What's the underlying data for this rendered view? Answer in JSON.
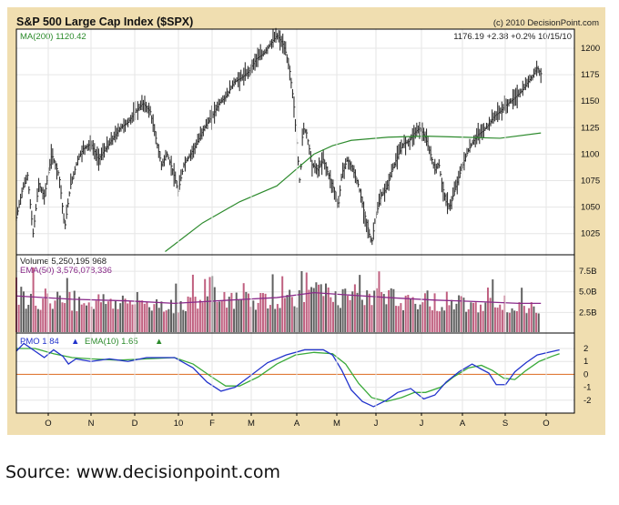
{
  "chart_data": {
    "type": "line",
    "title": "S&P 500 Large Cap Index ($SPX)",
    "copyright": "(c) 2010 DecisionPoint.com",
    "quote": "1176.19  +2.38  +0.2%  10/15/10",
    "ma_label": "MA(200) 1120.42",
    "x_ticks": [
      "O",
      "N",
      "D",
      "10",
      "F",
      "M",
      "A",
      "M",
      "J",
      "J",
      "A",
      "S",
      "O"
    ],
    "panels": {
      "price": {
        "ylim": [
          1005,
          1218
        ],
        "y_ticks": [
          1025,
          1050,
          1075,
          1100,
          1125,
          1150,
          1175,
          1200
        ],
        "close": [
          [
            0,
            1040
          ],
          [
            6,
            1065
          ],
          [
            12,
            1080
          ],
          [
            18,
            1025
          ],
          [
            24,
            1072
          ],
          [
            30,
            1060
          ],
          [
            38,
            1100
          ],
          [
            46,
            1080
          ],
          [
            52,
            1030
          ],
          [
            58,
            1070
          ],
          [
            66,
            1095
          ],
          [
            72,
            1105
          ],
          [
            80,
            1110
          ],
          [
            88,
            1095
          ],
          [
            96,
            1105
          ],
          [
            104,
            1115
          ],
          [
            112,
            1125
          ],
          [
            120,
            1130
          ],
          [
            128,
            1140
          ],
          [
            136,
            1148
          ],
          [
            144,
            1140
          ],
          [
            150,
            1115
          ],
          [
            156,
            1090
          ],
          [
            162,
            1100
          ],
          [
            168,
            1085
          ],
          [
            174,
            1065
          ],
          [
            180,
            1090
          ],
          [
            186,
            1098
          ],
          [
            194,
            1110
          ],
          [
            202,
            1125
          ],
          [
            210,
            1135
          ],
          [
            218,
            1148
          ],
          [
            226,
            1155
          ],
          [
            234,
            1168
          ],
          [
            242,
            1172
          ],
          [
            250,
            1178
          ],
          [
            258,
            1190
          ],
          [
            266,
            1195
          ],
          [
            274,
            1205
          ],
          [
            280,
            1212
          ],
          [
            286,
            1205
          ],
          [
            290,
            1195
          ],
          [
            294,
            1178
          ],
          [
            298,
            1150
          ],
          [
            302,
            1105
          ],
          [
            305,
            1070
          ],
          [
            308,
            1125
          ],
          [
            312,
            1120
          ],
          [
            318,
            1090
          ],
          [
            324,
            1085
          ],
          [
            330,
            1095
          ],
          [
            336,
            1080
          ],
          [
            342,
            1065
          ],
          [
            346,
            1050
          ],
          [
            350,
            1082
          ],
          [
            356,
            1095
          ],
          [
            362,
            1085
          ],
          [
            368,
            1070
          ],
          [
            374,
            1045
          ],
          [
            378,
            1030
          ],
          [
            382,
            1015
          ],
          [
            386,
            1040
          ],
          [
            392,
            1060
          ],
          [
            398,
            1068
          ],
          [
            404,
            1085
          ],
          [
            410,
            1098
          ],
          [
            416,
            1110
          ],
          [
            422,
            1112
          ],
          [
            428,
            1120
          ],
          [
            434,
            1125
          ],
          [
            440,
            1115
          ],
          [
            446,
            1098
          ],
          [
            450,
            1085
          ],
          [
            454,
            1092
          ],
          [
            458,
            1070
          ],
          [
            462,
            1055
          ],
          [
            466,
            1050
          ],
          [
            472,
            1068
          ],
          [
            478,
            1085
          ],
          [
            484,
            1100
          ],
          [
            490,
            1110
          ],
          [
            496,
            1118
          ],
          [
            502,
            1122
          ],
          [
            508,
            1128
          ],
          [
            514,
            1136
          ],
          [
            520,
            1140
          ],
          [
            526,
            1146
          ],
          [
            532,
            1150
          ],
          [
            538,
            1155
          ],
          [
            544,
            1160
          ],
          [
            550,
            1168
          ],
          [
            556,
            1175
          ],
          [
            560,
            1182
          ],
          [
            564,
            1176
          ]
        ],
        "ma200": [
          [
            160,
            1008
          ],
          [
            200,
            1035
          ],
          [
            240,
            1055
          ],
          [
            280,
            1070
          ],
          [
            300,
            1085
          ],
          [
            320,
            1100
          ],
          [
            340,
            1108
          ],
          [
            360,
            1113
          ],
          [
            400,
            1116
          ],
          [
            440,
            1117
          ],
          [
            480,
            1116
          ],
          [
            520,
            1115
          ],
          [
            564,
            1120
          ]
        ]
      },
      "volume": {
        "volume_label": "Volume 5,250,195,968",
        "ema_label": "EMA(50) 3,576,078,336",
        "ylim": [
          0,
          9.5
        ],
        "y_ticks": [
          "2.5B",
          "5.0B",
          "7.5B"
        ],
        "ema": [
          [
            0,
            4.5
          ],
          [
            60,
            4.1
          ],
          [
            120,
            3.9
          ],
          [
            170,
            3.6
          ],
          [
            230,
            4.0
          ],
          [
            280,
            4.3
          ],
          [
            320,
            4.9
          ],
          [
            360,
            4.6
          ],
          [
            400,
            4.3
          ],
          [
            450,
            4.0
          ],
          [
            500,
            3.8
          ],
          [
            540,
            3.6
          ],
          [
            564,
            3.6
          ]
        ]
      },
      "pmo": {
        "pmo_label": "PMO  1.84",
        "ema_label": "EMA(10)  1.65",
        "ylim": [
          -3,
          3.2
        ],
        "y_ticks": [
          2,
          1,
          0,
          -1,
          -2
        ],
        "pmo": [
          [
            0,
            1.8
          ],
          [
            8,
            2.4
          ],
          [
            20,
            1.8
          ],
          [
            30,
            1.3
          ],
          [
            40,
            1.9
          ],
          [
            50,
            1.4
          ],
          [
            56,
            0.8
          ],
          [
            64,
            1.2
          ],
          [
            80,
            1.0
          ],
          [
            100,
            1.2
          ],
          [
            120,
            1.0
          ],
          [
            140,
            1.3
          ],
          [
            170,
            1.3
          ],
          [
            190,
            0.5
          ],
          [
            205,
            -0.6
          ],
          [
            220,
            -1.3
          ],
          [
            235,
            -1.0
          ],
          [
            250,
            -0.2
          ],
          [
            270,
            0.9
          ],
          [
            290,
            1.5
          ],
          [
            310,
            1.9
          ],
          [
            330,
            1.9
          ],
          [
            340,
            1.5
          ],
          [
            350,
            0.3
          ],
          [
            360,
            -1.2
          ],
          [
            372,
            -2.1
          ],
          [
            384,
            -2.5
          ],
          [
            398,
            -2.0
          ],
          [
            410,
            -1.4
          ],
          [
            424,
            -1.1
          ],
          [
            438,
            -1.9
          ],
          [
            450,
            -1.6
          ],
          [
            462,
            -0.6
          ],
          [
            476,
            0.2
          ],
          [
            490,
            0.8
          ],
          [
            500,
            0.4
          ],
          [
            508,
            0.1
          ],
          [
            516,
            -0.8
          ],
          [
            526,
            -0.8
          ],
          [
            536,
            0.2
          ],
          [
            548,
            0.9
          ],
          [
            560,
            1.5
          ],
          [
            572,
            1.7
          ],
          [
            584,
            1.9
          ]
        ],
        "pmo_ema": [
          [
            0,
            2.0
          ],
          [
            20,
            2.0
          ],
          [
            40,
            1.6
          ],
          [
            60,
            1.3
          ],
          [
            80,
            1.2
          ],
          [
            110,
            1.1
          ],
          [
            140,
            1.2
          ],
          [
            170,
            1.3
          ],
          [
            190,
            0.8
          ],
          [
            210,
            -0.2
          ],
          [
            225,
            -0.9
          ],
          [
            240,
            -0.9
          ],
          [
            260,
            -0.2
          ],
          [
            280,
            0.8
          ],
          [
            300,
            1.5
          ],
          [
            320,
            1.7
          ],
          [
            340,
            1.6
          ],
          [
            354,
            0.8
          ],
          [
            368,
            -0.7
          ],
          [
            382,
            -1.8
          ],
          [
            398,
            -2.1
          ],
          [
            414,
            -1.8
          ],
          [
            428,
            -1.4
          ],
          [
            440,
            -1.4
          ],
          [
            456,
            -1.0
          ],
          [
            470,
            -0.2
          ],
          [
            486,
            0.5
          ],
          [
            500,
            0.7
          ],
          [
            512,
            0.3
          ],
          [
            524,
            -0.3
          ],
          [
            536,
            -0.4
          ],
          [
            548,
            0.3
          ],
          [
            562,
            1.0
          ],
          [
            576,
            1.4
          ],
          [
            584,
            1.6
          ]
        ]
      }
    }
  },
  "source": "Source: www.decisionpoint.com"
}
